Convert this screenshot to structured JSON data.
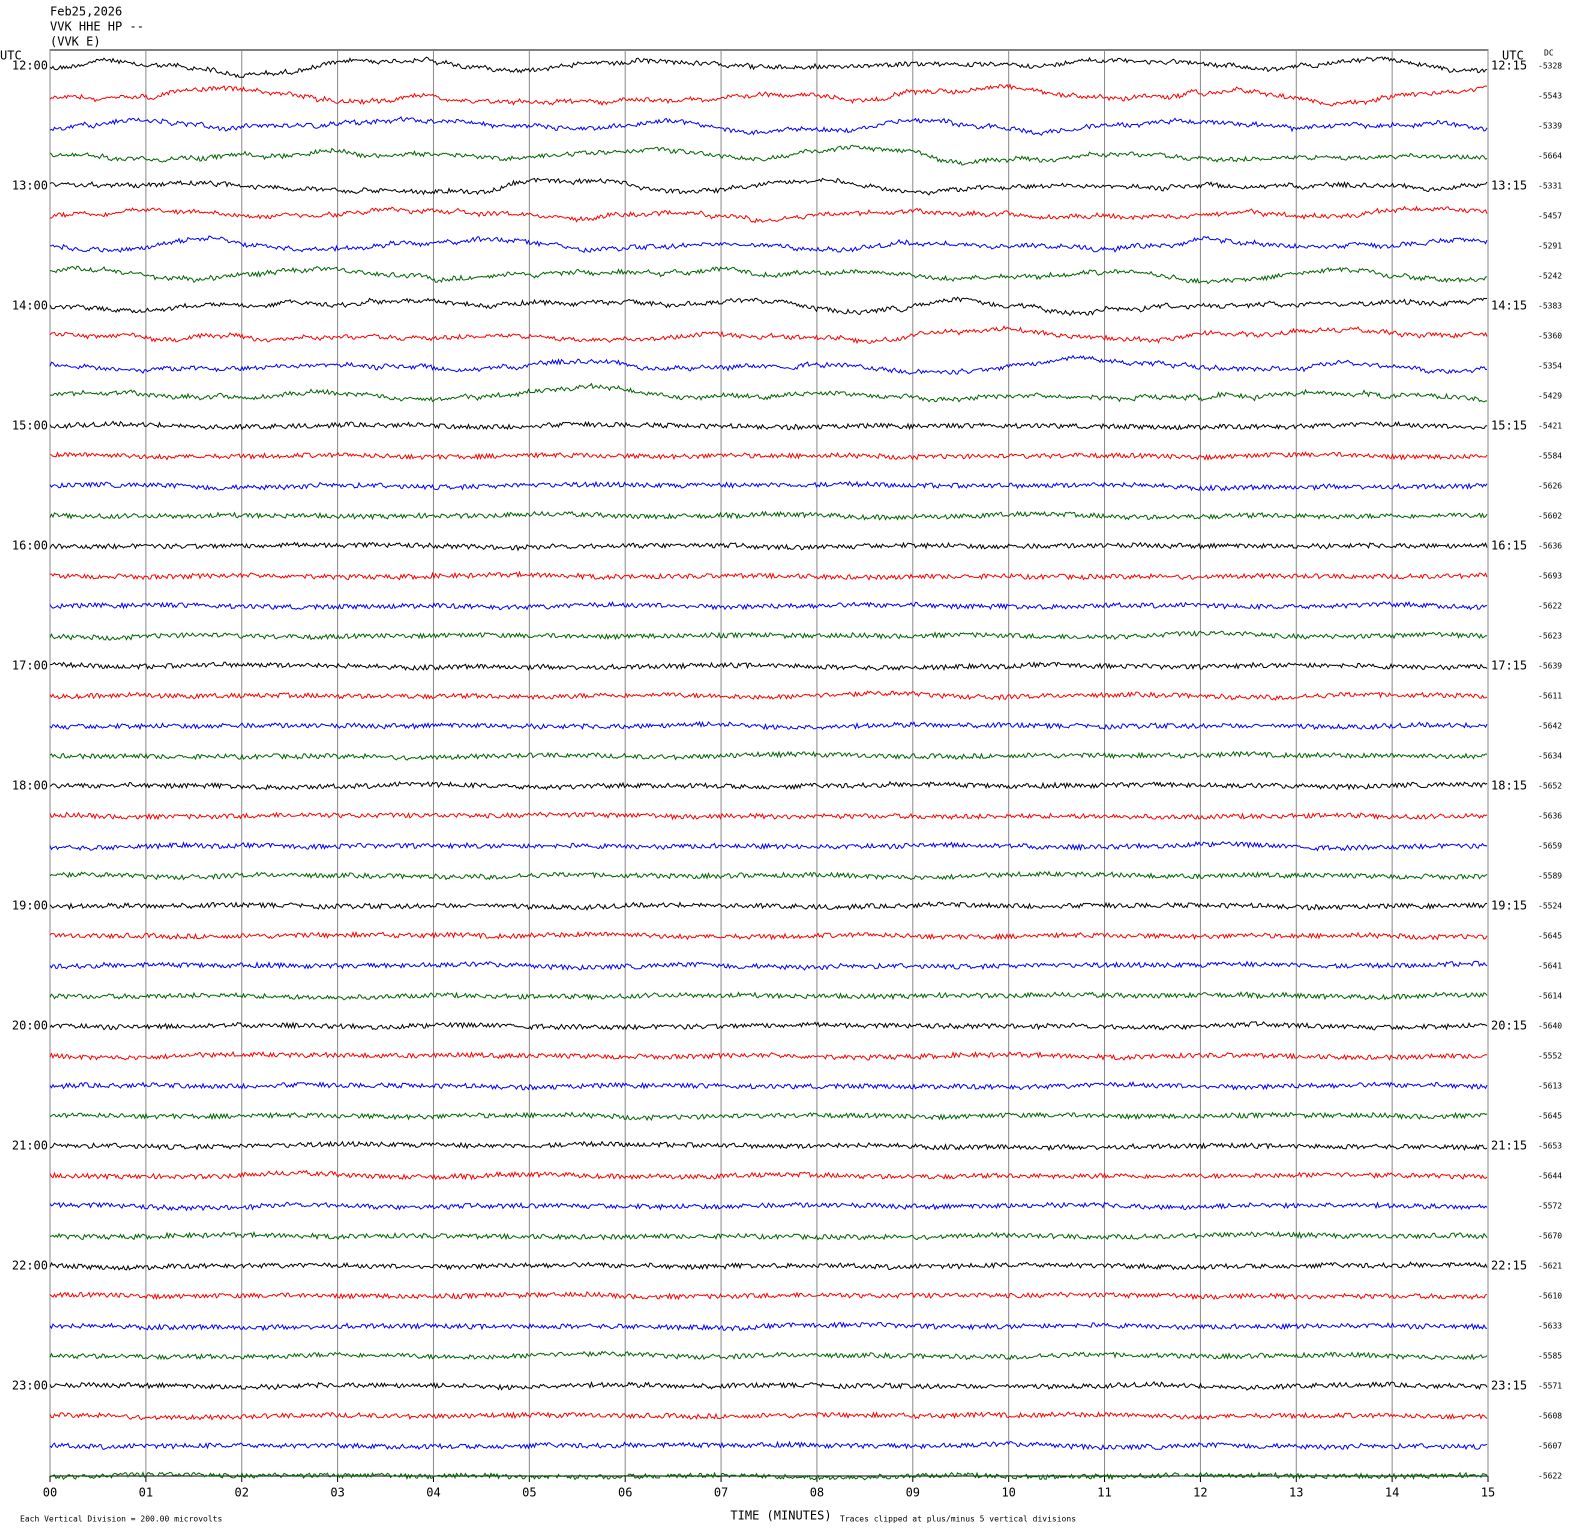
{
  "chart_data": {
    "type": "seismogram",
    "title": [
      "Feb25,2026",
      "VVK HHE HP --",
      "(VVK E)"
    ],
    "left_axis_title": "UTC",
    "right_axis_title": "UTC",
    "dc_title": "DC",
    "left_labels": [
      "12:00",
      "13:00",
      "14:00",
      "15:00",
      "16:00",
      "17:00",
      "18:00",
      "19:00",
      "20:00",
      "21:00",
      "22:00",
      "23:00"
    ],
    "right_labels": [
      "12:15",
      "13:15",
      "14:15",
      "15:15",
      "16:15",
      "17:15",
      "18:15",
      "19:15",
      "20:15",
      "21:15",
      "22:15",
      "23:15"
    ],
    "dc_values": [
      -5328,
      -5543,
      -5339,
      -5664,
      -5331,
      -5457,
      -5291,
      -5242,
      -5383,
      -5360,
      -5354,
      -5429,
      -5421,
      -5584,
      -5626,
      -5602,
      -5636,
      -5693,
      -5622,
      -5623,
      -5639,
      -5611,
      -5642,
      -5634,
      -5652,
      -5636,
      -5659,
      -5589,
      -5524,
      -5645,
      -5641,
      -5614,
      -5640,
      -5552,
      -5613,
      -5645,
      -5653,
      -5644,
      -5572,
      -5670,
      -5621,
      -5610,
      -5633,
      -5585,
      -5571,
      -5608,
      -5607,
      -5622
    ],
    "trace_colors": [
      "#000000",
      "#ff0000",
      "#0000ff",
      "#006400"
    ],
    "xlim": [
      0,
      15
    ],
    "xticks": [
      {
        "value": 0,
        "label": "00"
      },
      {
        "value": 1,
        "label": "01"
      },
      {
        "value": 2,
        "label": "02"
      },
      {
        "value": 3,
        "label": "03"
      },
      {
        "value": 4,
        "label": "04"
      },
      {
        "value": 5,
        "label": "05"
      },
      {
        "value": 6,
        "label": "06"
      },
      {
        "value": 7,
        "label": "07"
      },
      {
        "value": 8,
        "label": "08"
      },
      {
        "value": 9,
        "label": "09"
      },
      {
        "value": 10,
        "label": "10"
      },
      {
        "value": 11,
        "label": "11"
      },
      {
        "value": 12,
        "label": "12"
      },
      {
        "value": 13,
        "label": "13"
      },
      {
        "value": 14,
        "label": "14"
      },
      {
        "value": 15,
        "label": "15"
      }
    ],
    "grid": true,
    "xlabel": "TIME (MINUTES)",
    "scale_note": "Each Vertical Division =  200.00 microvolts",
    "clip_note": "Traces clipped at plus/minus 5 vertical divisions"
  }
}
